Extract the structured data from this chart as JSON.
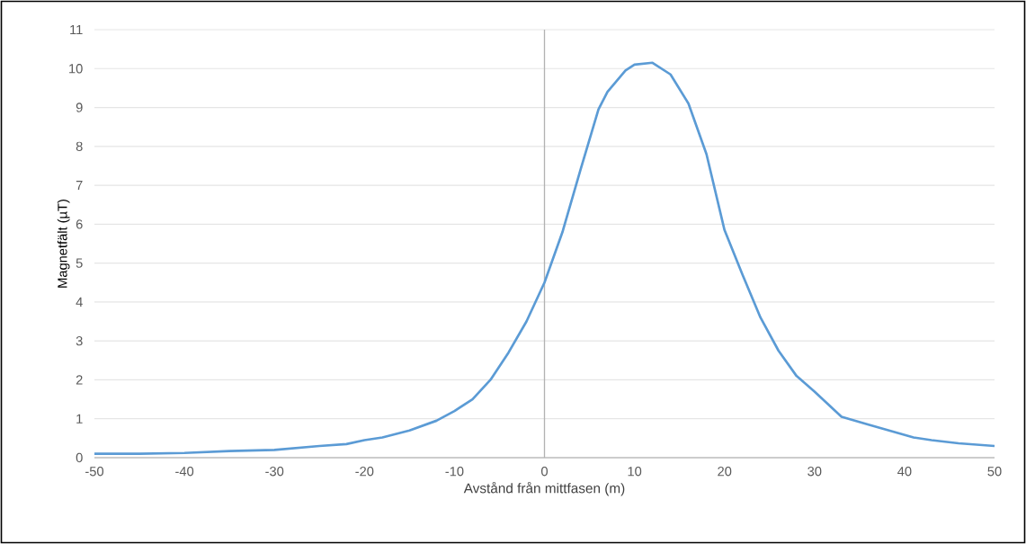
{
  "chart_data": {
    "type": "line",
    "xlabel": "Avstånd från mittfasen (m)",
    "ylabel": "Magnetfält  (µT)",
    "x": [
      -50,
      -45,
      -40,
      -35,
      -30,
      -25,
      -22,
      -20,
      -18,
      -15,
      -12,
      -10,
      -8,
      -6,
      -4,
      -2,
      0,
      2,
      4,
      6,
      7,
      9,
      10,
      12,
      14,
      16,
      18,
      20,
      22,
      24,
      26,
      28,
      30,
      33,
      36,
      41,
      43,
      46,
      50
    ],
    "series": [
      {
        "color": "#5b9bd5",
        "values": [
          0.1,
          0.1,
          0.12,
          0.17,
          0.2,
          0.3,
          0.35,
          0.45,
          0.52,
          0.7,
          0.95,
          1.2,
          1.5,
          2.0,
          2.7,
          3.5,
          4.5,
          5.8,
          7.4,
          8.95,
          9.4,
          9.95,
          10.1,
          10.15,
          9.85,
          9.1,
          7.8,
          5.85,
          4.7,
          3.6,
          2.75,
          2.1,
          1.7,
          1.05,
          0.85,
          0.52,
          0.45,
          0.37,
          0.3
        ]
      }
    ],
    "xlim": [
      -50,
      50
    ],
    "ylim": [
      0,
      11
    ],
    "xticks": [
      -50,
      -40,
      -30,
      -20,
      -10,
      0,
      10,
      20,
      30,
      40,
      50
    ],
    "yticks": [
      0,
      1,
      2,
      3,
      4,
      5,
      6,
      7,
      8,
      9,
      10,
      11
    ],
    "grid": "y",
    "marker": "none",
    "line_style": "solid"
  }
}
